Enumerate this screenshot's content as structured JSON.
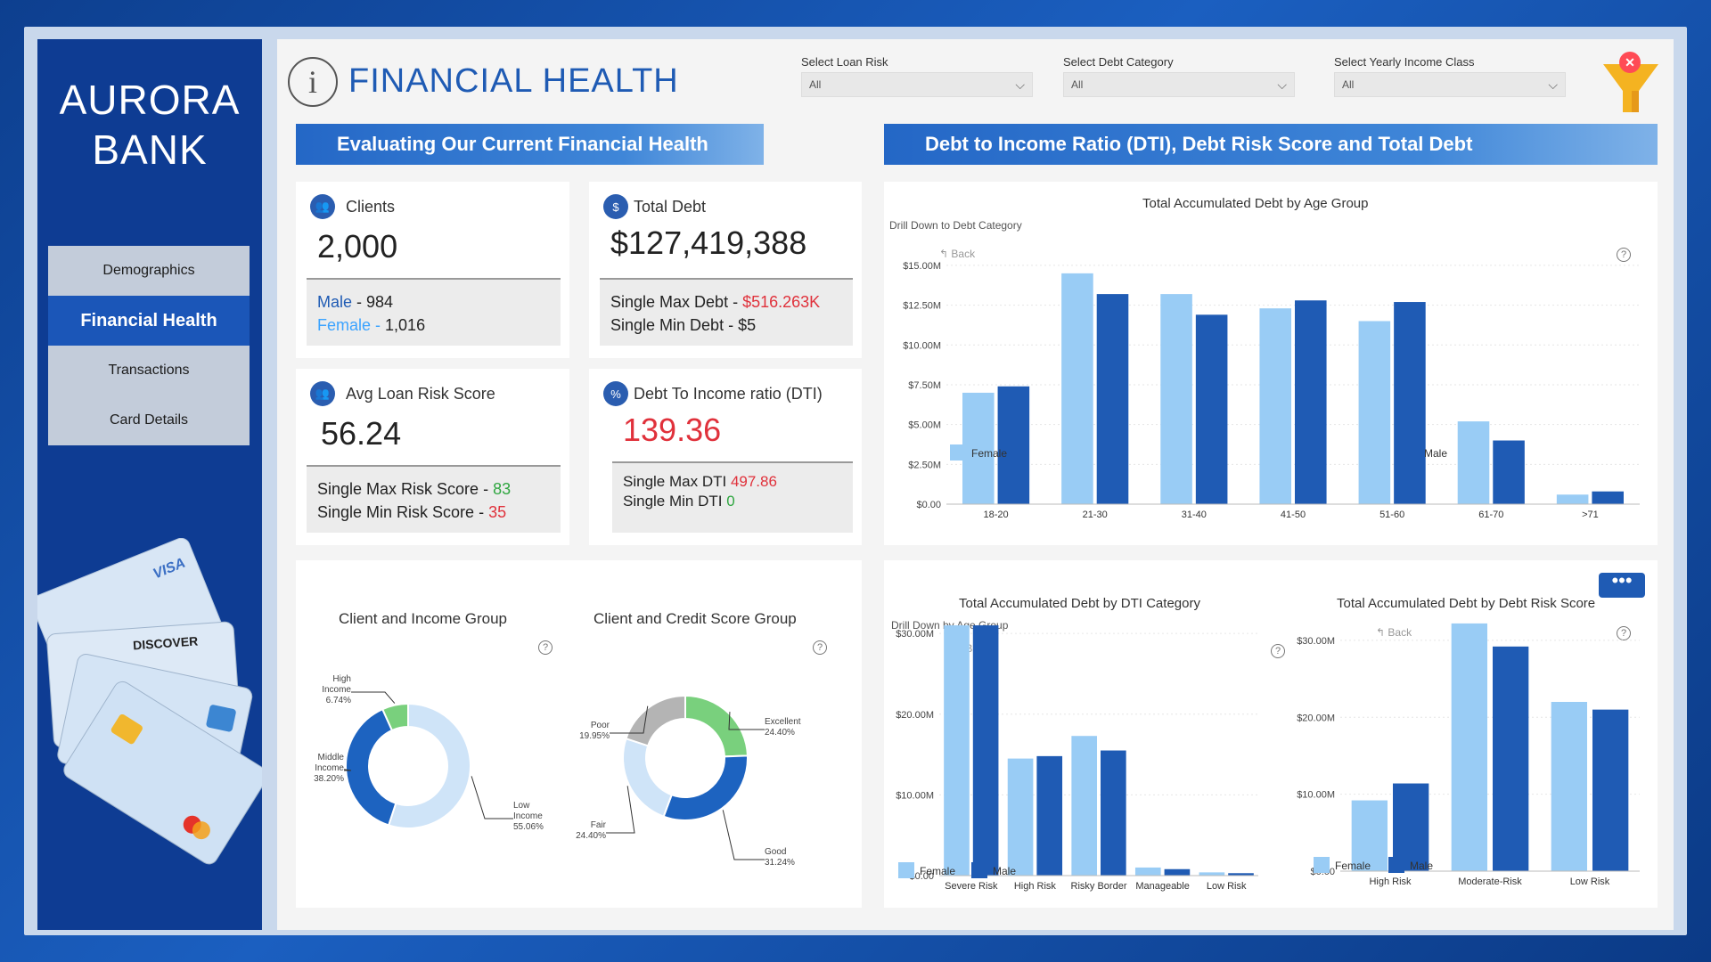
{
  "brand": {
    "line1": "AURORA",
    "line2": "BANK"
  },
  "nav": [
    {
      "label": "Demographics",
      "active": false
    },
    {
      "label": "Financial Health",
      "active": true
    },
    {
      "label": "Transactions",
      "active": false
    },
    {
      "label": "Card Details",
      "active": false
    }
  ],
  "cards": {
    "visa": "VISA",
    "discover": "DISCOVER"
  },
  "page_title": "FINANCIAL HEALTH",
  "info_icon": "i",
  "slicers": [
    {
      "label": "Select Loan Risk",
      "value": "All"
    },
    {
      "label": "Select Debt Category",
      "value": "All"
    },
    {
      "label": "Select Yearly Income Class",
      "value": "All"
    }
  ],
  "section_headers": {
    "left": "Evaluating Our  Current Financial Health",
    "right": "Debt to Income Ratio (DTI), Debt Risk Score and Total Debt"
  },
  "kpis": {
    "clients": {
      "title": "Clients",
      "value": "2,000",
      "male_label": "Male",
      "male_sep": " - ",
      "male_value": "984",
      "female_label": "Female",
      "female_sep": " - ",
      "female_value": "1,016"
    },
    "total_debt": {
      "title": "Total Debt",
      "value": "$127,419,388",
      "max_label": "Single Max Debt",
      "max_sep": " - ",
      "max_value": "$516.263K",
      "min_label": "Single Min Debt",
      "min_sep": " - ",
      "min_value": "$5"
    },
    "risk_score": {
      "title": "Avg Loan Risk Score",
      "value": "56.24",
      "max_label": "Single Max Risk Score",
      "max_sep": " - ",
      "max_value": "83",
      "min_label": "Single Min Risk Score",
      "min_sep": " - ",
      "min_value": "35"
    },
    "dti": {
      "title": "Debt To Income ratio (DTI)",
      "value": "139.36",
      "max_label": "Single Max DTI ",
      "max_value": "497.86",
      "min_label": "Single Min DTI ",
      "min_value": "0"
    }
  },
  "labels": {
    "drill_debt_category": "Drill Down to Debt Category",
    "drill_age_group": "Drill Down by Age Group",
    "back": "Back",
    "help": "?",
    "more": "•••"
  },
  "colors": {
    "female": "#99ccf5",
    "male": "#1f5bb4",
    "accent": "#1f5bb4",
    "negative": "#e0313b",
    "positive": "#2fa640",
    "donut_dark": "#1d63c0",
    "donut_light": "#cfe4f8",
    "donut_green": "#79d07d",
    "donut_gray": "#b4b4b4"
  },
  "chart_data": [
    {
      "type": "bar",
      "title": "Total Accumulated Debt by Age Group",
      "categories": [
        "18-20",
        "21-30",
        "31-40",
        "41-50",
        "51-60",
        "61-70",
        ">71"
      ],
      "series": [
        {
          "name": "Female",
          "values": [
            7.0,
            14.5,
            13.2,
            12.3,
            11.5,
            5.2,
            0.6
          ]
        },
        {
          "name": "Male",
          "values": [
            7.4,
            13.2,
            11.9,
            12.8,
            12.7,
            4.0,
            0.8
          ]
        }
      ],
      "yticks": [
        "$0.00",
        "$2.50M",
        "$5.00M",
        "$7.50M",
        "$10.00M",
        "$12.50M",
        "$15.00M"
      ],
      "ylim": [
        0,
        15.5
      ]
    },
    {
      "type": "pie",
      "title": "Client and Income Group",
      "slices": [
        {
          "name": "Low Income",
          "value": 55.06,
          "label": "55.06%"
        },
        {
          "name": "Middle Income",
          "value": 38.2,
          "label": "38.20%"
        },
        {
          "name": "High Income",
          "value": 6.74,
          "label": "6.74%"
        }
      ]
    },
    {
      "type": "pie",
      "title": "Client and Credit Score Group",
      "slices": [
        {
          "name": "Excellent",
          "value": 24.4,
          "label": "24.40%"
        },
        {
          "name": "Good",
          "value": 31.24,
          "label": "31.24%"
        },
        {
          "name": "Fair",
          "value": 24.4,
          "label": "24.40%"
        },
        {
          "name": "Poor",
          "value": 19.95,
          "label": "19.95%"
        }
      ]
    },
    {
      "type": "bar",
      "title": "Total Accumulated Debt by DTI Category",
      "categories": [
        "Severe Risk",
        "High Risk",
        "Risky Border",
        "Manageable",
        "Low Risk"
      ],
      "series": [
        {
          "name": "Female",
          "values": [
            31.0,
            14.5,
            17.3,
            1.0,
            0.4
          ]
        },
        {
          "name": "Male",
          "values": [
            31.0,
            14.8,
            15.5,
            0.8,
            0.3
          ]
        }
      ],
      "yticks": [
        "$0.00",
        "$10.00M",
        "$20.00M",
        "$30.00M"
      ],
      "ylim": [
        0,
        32
      ]
    },
    {
      "type": "bar",
      "title": "Total Accumulated Debt by Debt Risk Score",
      "categories": [
        "High Risk",
        "Moderate-Risk",
        "Low Risk"
      ],
      "series": [
        {
          "name": "Female",
          "values": [
            9.2,
            32.2,
            22.0
          ]
        },
        {
          "name": "Male",
          "values": [
            11.4,
            29.2,
            21.0
          ]
        }
      ],
      "yticks": [
        "$0.00",
        "$10.00M",
        "$20.00M",
        "$30.00M"
      ],
      "ylim": [
        0,
        33
      ]
    }
  ]
}
